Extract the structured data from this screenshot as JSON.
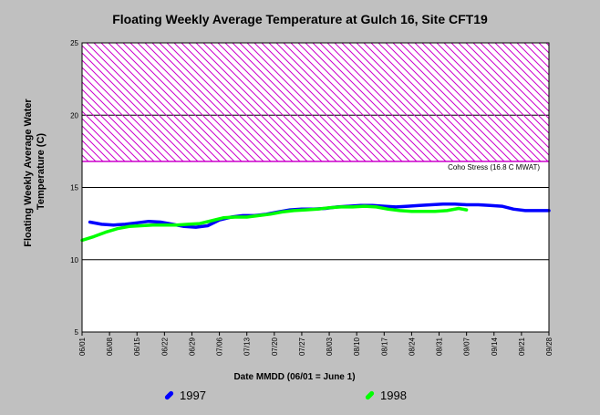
{
  "chart_data": {
    "type": "line",
    "title": "Floating Weekly Average Temperature at Gulch 16, Site CFT19",
    "xlabel": "Date MMDD (06/01 = June 1)",
    "ylabel": "Floating Weekly Average Water Temperature (C)",
    "ylim": [
      5,
      25
    ],
    "yticks": [
      5,
      10,
      15,
      20,
      25
    ],
    "x_ticks": [
      "06/01",
      "06/08",
      "06/15",
      "06/22",
      "06/29",
      "07/06",
      "07/13",
      "07/20",
      "07/27",
      "08/03",
      "08/10",
      "08/17",
      "08/24",
      "08/31",
      "09/07",
      "09/14",
      "09/21",
      "09/28"
    ],
    "grid": "horizontal",
    "threshold": {
      "label": "Coho Stress (16.8 C MWAT)",
      "value": 16.8,
      "upper": 25,
      "color": "#cc00cc"
    },
    "series": [
      {
        "name": "1997",
        "color": "#0000ff",
        "points": [
          [
            2,
            12.6
          ],
          [
            5,
            12.45
          ],
          [
            8,
            12.4
          ],
          [
            11,
            12.45
          ],
          [
            14,
            12.55
          ],
          [
            17,
            12.65
          ],
          [
            20,
            12.6
          ],
          [
            23,
            12.45
          ],
          [
            26,
            12.3
          ],
          [
            29,
            12.25
          ],
          [
            32,
            12.35
          ],
          [
            35,
            12.75
          ],
          [
            38,
            12.95
          ],
          [
            41,
            13.05
          ],
          [
            44,
            13.05
          ],
          [
            47,
            13.15
          ],
          [
            50,
            13.3
          ],
          [
            53,
            13.45
          ],
          [
            56,
            13.5
          ],
          [
            59,
            13.5
          ],
          [
            62,
            13.55
          ],
          [
            65,
            13.65
          ],
          [
            68,
            13.7
          ],
          [
            71,
            13.75
          ],
          [
            74,
            13.75
          ],
          [
            77,
            13.7
          ],
          [
            80,
            13.65
          ],
          [
            83,
            13.7
          ],
          [
            86,
            13.75
          ],
          [
            89,
            13.8
          ],
          [
            92,
            13.85
          ],
          [
            95,
            13.85
          ],
          [
            98,
            13.8
          ],
          [
            101,
            13.8
          ],
          [
            104,
            13.75
          ],
          [
            107,
            13.7
          ],
          [
            110,
            13.5
          ],
          [
            113,
            13.4
          ],
          [
            116,
            13.4
          ],
          [
            119,
            13.4
          ]
        ]
      },
      {
        "name": "1998",
        "color": "#00ff00",
        "points": [
          [
            0,
            11.35
          ],
          [
            3,
            11.6
          ],
          [
            6,
            11.9
          ],
          [
            9,
            12.15
          ],
          [
            12,
            12.3
          ],
          [
            15,
            12.35
          ],
          [
            18,
            12.4
          ],
          [
            21,
            12.4
          ],
          [
            24,
            12.4
          ],
          [
            27,
            12.45
          ],
          [
            30,
            12.5
          ],
          [
            33,
            12.7
          ],
          [
            36,
            12.9
          ],
          [
            39,
            12.95
          ],
          [
            42,
            12.95
          ],
          [
            45,
            13.05
          ],
          [
            48,
            13.15
          ],
          [
            51,
            13.3
          ],
          [
            54,
            13.4
          ],
          [
            57,
            13.45
          ],
          [
            60,
            13.5
          ],
          [
            63,
            13.6
          ],
          [
            66,
            13.65
          ],
          [
            69,
            13.65
          ],
          [
            72,
            13.7
          ],
          [
            75,
            13.65
          ],
          [
            78,
            13.5
          ],
          [
            81,
            13.4
          ],
          [
            84,
            13.35
          ],
          [
            87,
            13.35
          ],
          [
            90,
            13.35
          ],
          [
            93,
            13.4
          ],
          [
            96,
            13.55
          ],
          [
            98,
            13.45
          ]
        ]
      }
    ]
  },
  "legend": [
    {
      "label": "1997",
      "color": "#0000ff"
    },
    {
      "label": "1998",
      "color": "#00ff00"
    }
  ]
}
